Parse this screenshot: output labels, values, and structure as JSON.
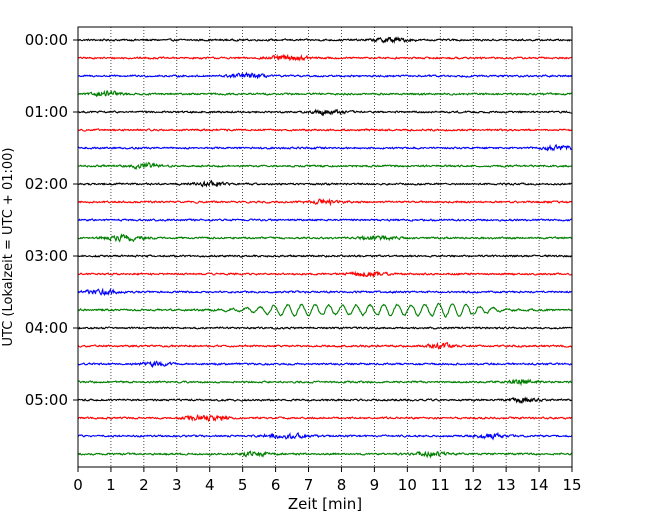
{
  "chart_data": {
    "type": "line",
    "title": "",
    "xlabel": "Zeit  [min]",
    "ylabel": "UTC (Lokalzeit = UTC + 01:00)",
    "xlim": [
      0,
      15
    ],
    "xticks": [
      0,
      1,
      2,
      3,
      4,
      5,
      6,
      7,
      8,
      9,
      10,
      11,
      12,
      13,
      14,
      15
    ],
    "xtick_labels": [
      "0",
      "1",
      "2",
      "3",
      "4",
      "5",
      "6",
      "7",
      "8",
      "9",
      "10",
      "11",
      "12",
      "13",
      "14",
      "15"
    ],
    "ytick_labels": [
      "00:00",
      "01:00",
      "02:00",
      "03:00",
      "04:00",
      "05:00"
    ],
    "grid": "vertical dotted lines at each minute",
    "trace_interval_minutes": 15,
    "traces_per_hour": 4,
    "trace_colors": [
      "#000000",
      "#ff0000",
      "#0000ff",
      "#008000"
    ],
    "series": [
      {
        "start": "00:00",
        "bursts": [
          [
            9.5,
            0.5
          ]
        ]
      },
      {
        "start": "00:15",
        "bursts": [
          [
            6.4,
            0.6
          ]
        ]
      },
      {
        "start": "00:30",
        "bursts": [
          [
            5.1,
            0.5
          ]
        ]
      },
      {
        "start": "00:45",
        "bursts": [
          [
            0.9,
            0.4
          ]
        ]
      },
      {
        "start": "01:00",
        "bursts": [
          [
            7.6,
            0.5
          ]
        ]
      },
      {
        "start": "01:15",
        "bursts": []
      },
      {
        "start": "01:30",
        "bursts": [
          [
            14.6,
            0.4
          ]
        ]
      },
      {
        "start": "01:45",
        "bursts": [
          [
            2.0,
            0.4
          ]
        ]
      },
      {
        "start": "02:00",
        "bursts": [
          [
            4.0,
            0.4
          ]
        ]
      },
      {
        "start": "02:15",
        "bursts": [
          [
            7.5,
            0.5
          ]
        ]
      },
      {
        "start": "02:30",
        "bursts": []
      },
      {
        "start": "02:45",
        "bursts": [
          [
            1.4,
            0.6
          ],
          [
            9.1,
            0.5
          ]
        ]
      },
      {
        "start": "03:00",
        "bursts": []
      },
      {
        "start": "03:15",
        "bursts": [
          [
            8.8,
            0.5
          ]
        ]
      },
      {
        "start": "03:30",
        "bursts": [
          [
            0.7,
            0.5
          ]
        ]
      },
      {
        "start": "03:45",
        "bursts": [
          [
            6.5,
            0.9
          ],
          [
            9.3,
            1.0
          ],
          [
            11.5,
            0.7
          ]
        ],
        "event": true
      },
      {
        "start": "04:00",
        "bursts": []
      },
      {
        "start": "04:15",
        "bursts": [
          [
            11.0,
            0.4
          ]
        ]
      },
      {
        "start": "04:30",
        "bursts": [
          [
            2.4,
            0.4
          ]
        ]
      },
      {
        "start": "04:45",
        "bursts": [
          [
            13.5,
            0.4
          ]
        ]
      },
      {
        "start": "05:00",
        "bursts": [
          [
            13.6,
            0.4
          ]
        ]
      },
      {
        "start": "05:15",
        "bursts": [
          [
            3.9,
            0.6
          ]
        ]
      },
      {
        "start": "05:30",
        "bursts": [
          [
            6.3,
            0.6
          ],
          [
            12.5,
            0.4
          ]
        ]
      },
      {
        "start": "05:45",
        "bursts": [
          [
            5.4,
            0.4
          ],
          [
            10.7,
            0.5
          ]
        ]
      }
    ]
  }
}
